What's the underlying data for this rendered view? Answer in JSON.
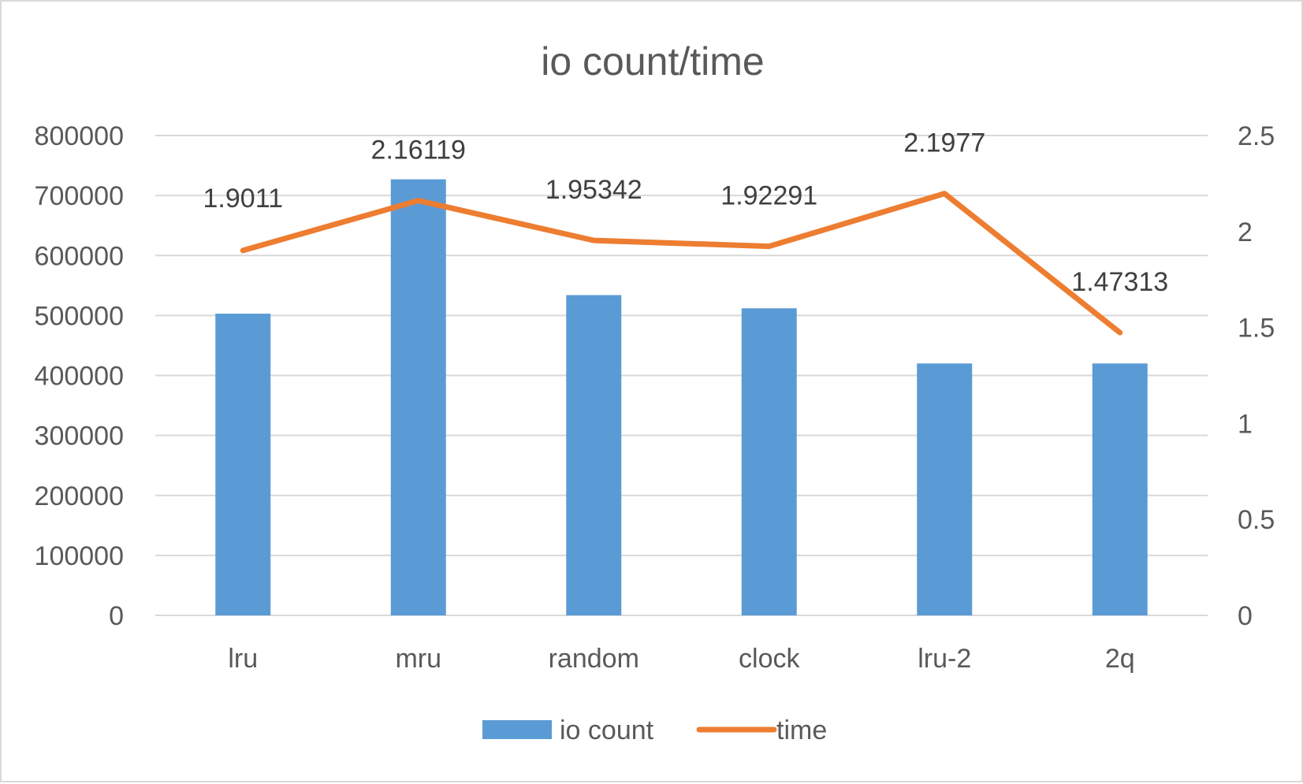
{
  "chart_data": {
    "type": "bar",
    "title": "io count/time",
    "categories": [
      "lru",
      "mru",
      "random",
      "clock",
      "lru-2",
      "2q"
    ],
    "series": [
      {
        "name": "io count",
        "type": "bar",
        "axis": "left",
        "color": "#5b9bd5",
        "values": [
          503000,
          727000,
          534000,
          512000,
          420000,
          420000
        ]
      },
      {
        "name": "time",
        "type": "line",
        "axis": "right",
        "color": "#ed7d31",
        "values": [
          1.9011,
          2.16119,
          1.95342,
          1.92291,
          2.1977,
          1.47313
        ],
        "data_labels": [
          "1.9011",
          "2.16119",
          "1.95342",
          "1.92291",
          "2.1977",
          "1.47313"
        ]
      }
    ],
    "y_left": {
      "min": 0,
      "max": 800000,
      "ticks": [
        "0",
        "100000",
        "200000",
        "300000",
        "400000",
        "500000",
        "600000",
        "700000",
        "800000"
      ]
    },
    "y_right": {
      "min": 0,
      "max": 2.5,
      "ticks": [
        "0",
        "0.5",
        "1",
        "1.5",
        "2",
        "2.5"
      ]
    },
    "grid": true,
    "legend_position": "bottom",
    "colors": {
      "text": "#595959",
      "label": "#404040",
      "grid": "#d9d9d9",
      "border": "#d9d9d9"
    }
  }
}
